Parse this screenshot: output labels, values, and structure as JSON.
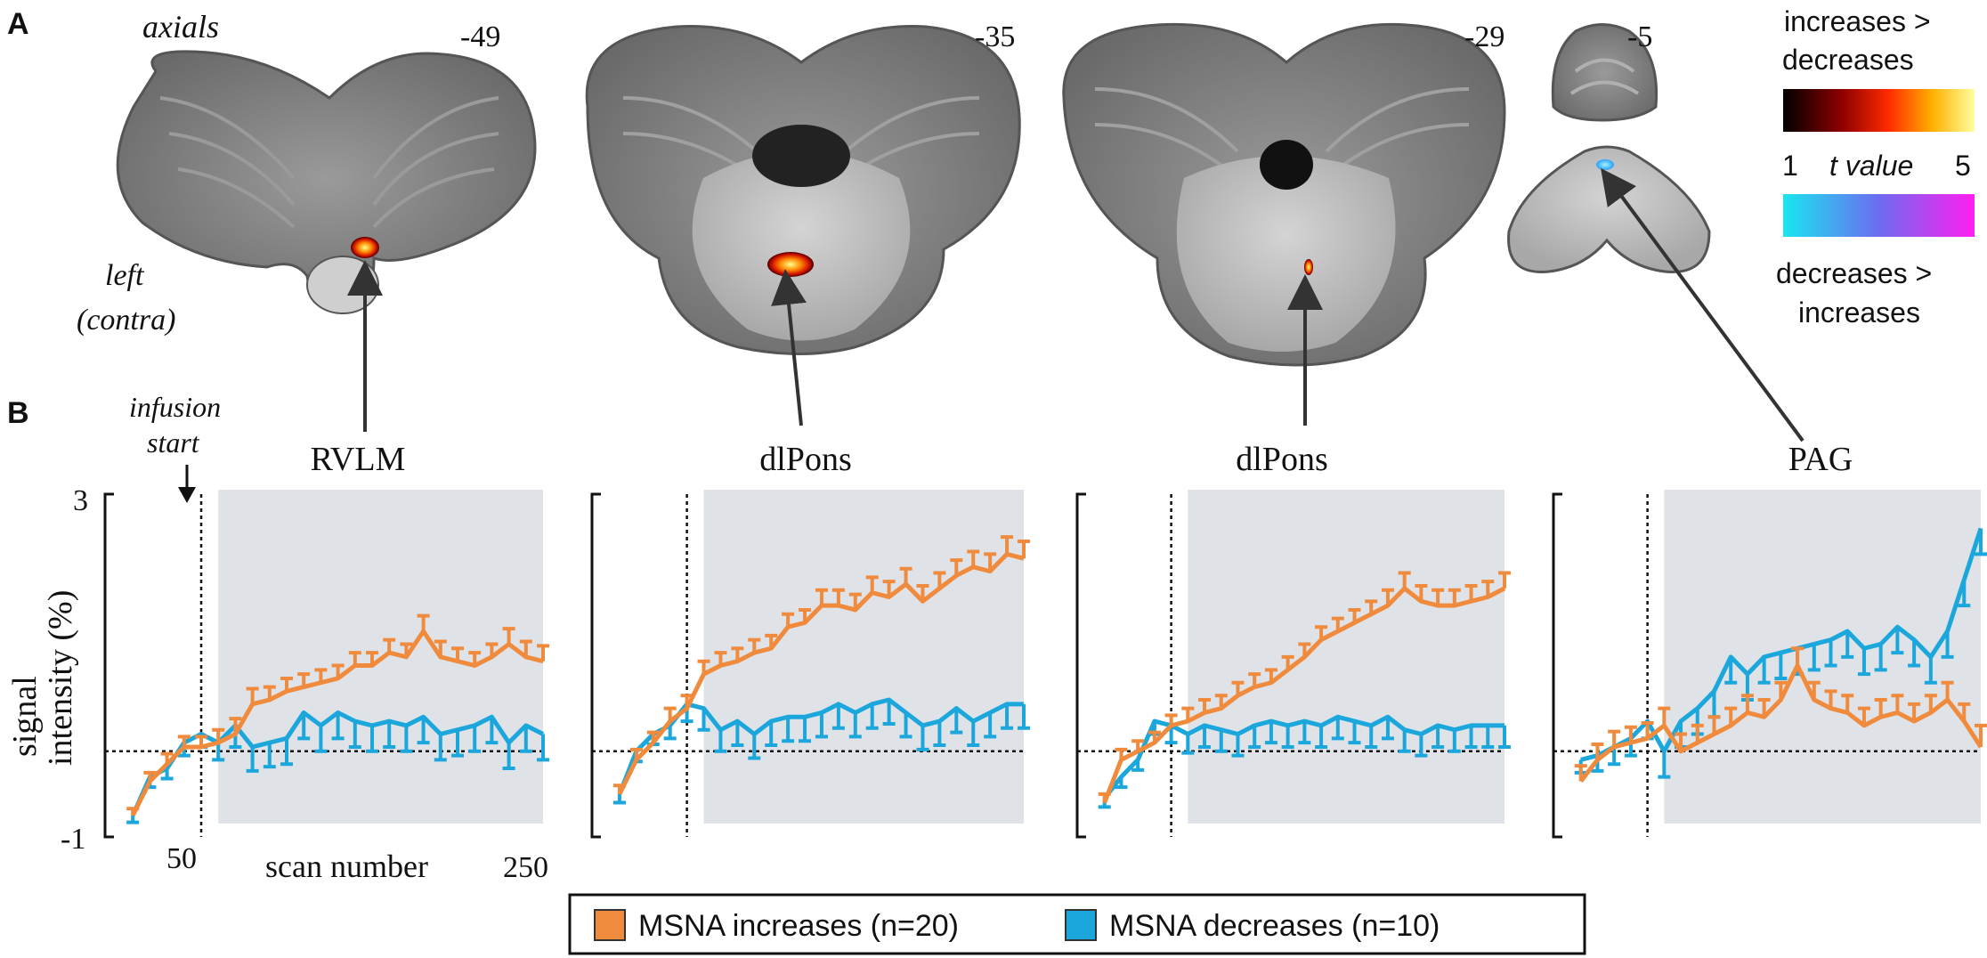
{
  "panel_a": {
    "label": "A",
    "axials_label": "axials",
    "left_label_1": "left",
    "left_label_2": "(contra)",
    "slices": [
      {
        "z": "-49"
      },
      {
        "z": "-35"
      },
      {
        "z": "-29"
      },
      {
        "z": "-5"
      }
    ],
    "colorbar": {
      "top_label_1": "increases >",
      "top_label_2": "decreases",
      "min": "1",
      "mid": "t value",
      "max": "5",
      "bottom_label_1": "decreases >",
      "bottom_label_2": "increases"
    }
  },
  "panel_b": {
    "label": "B",
    "infusion_label_1": "infusion",
    "infusion_label_2": "start",
    "ytick_top": "3",
    "ytick_bottom": "-1",
    "ylabel_1": "signal",
    "ylabel_2": "intensity (%)",
    "xtick_50": "50",
    "xtick_250": "250",
    "xlabel": "scan number"
  },
  "legend": {
    "increases": "MSNA increases (n=20)",
    "decreases": "MSNA decreases (n=10)"
  },
  "colors": {
    "increases": "#f08a3c",
    "decreases": "#1ba6dc",
    "shade": "#dfe3e8"
  },
  "chart_data": [
    {
      "type": "line",
      "title": "RVLM",
      "x": [
        10,
        20,
        30,
        40,
        50,
        60,
        70,
        80,
        90,
        100,
        110,
        120,
        130,
        140,
        150,
        160,
        170,
        180,
        190,
        200,
        210,
        220,
        230,
        240,
        250
      ],
      "xlim": [
        0,
        250
      ],
      "ylim": [
        -1,
        3
      ],
      "xlabel": "scan number",
      "ylabel": "signal intensity (%)",
      "xticks": [
        50,
        250
      ],
      "yticks": [
        -1,
        3
      ],
      "infusion_start": 50,
      "shaded_range": [
        60,
        250
      ],
      "series": [
        {
          "name": "MSNA increases (n=20)",
          "values": [
            -0.75,
            -0.35,
            -0.15,
            0.05,
            0.05,
            0.1,
            0.2,
            0.55,
            0.6,
            0.7,
            0.75,
            0.8,
            0.85,
            1.0,
            1.0,
            1.15,
            1.1,
            1.4,
            1.1,
            1.05,
            1.0,
            1.1,
            1.25,
            1.1,
            1.05
          ],
          "errors": [
            0.08,
            0.1,
            0.12,
            0.12,
            0.12,
            0.15,
            0.18,
            0.18,
            0.15,
            0.15,
            0.15,
            0.15,
            0.15,
            0.15,
            0.15,
            0.15,
            0.15,
            0.18,
            0.18,
            0.15,
            0.15,
            0.15,
            0.18,
            0.18,
            0.18
          ]
        },
        {
          "name": "MSNA decreases (n=10)",
          "values": [
            -0.75,
            -0.3,
            -0.2,
            0.1,
            0.2,
            0.1,
            0.3,
            0.05,
            0.1,
            0.15,
            0.45,
            0.3,
            0.45,
            0.35,
            0.3,
            0.35,
            0.3,
            0.4,
            0.2,
            0.25,
            0.3,
            0.4,
            0.1,
            0.3,
            0.2
          ],
          "errors": [
            0.08,
            0.12,
            0.12,
            0.15,
            0.15,
            0.2,
            0.25,
            0.28,
            0.28,
            0.3,
            0.3,
            0.3,
            0.3,
            0.3,
            0.3,
            0.3,
            0.3,
            0.3,
            0.3,
            0.3,
            0.3,
            0.3,
            0.3,
            0.3,
            0.3
          ]
        }
      ]
    },
    {
      "type": "line",
      "title": "dlPons",
      "x": [
        10,
        20,
        30,
        40,
        50,
        60,
        70,
        80,
        90,
        100,
        110,
        120,
        130,
        140,
        150,
        160,
        170,
        180,
        190,
        200,
        210,
        220,
        230,
        240,
        250
      ],
      "xlim": [
        0,
        250
      ],
      "ylim": [
        -1,
        3
      ],
      "infusion_start": 50,
      "shaded_range": [
        60,
        250
      ],
      "series": [
        {
          "name": "MSNA increases (n=20)",
          "values": [
            -0.5,
            -0.1,
            0.1,
            0.35,
            0.5,
            0.9,
            1.0,
            1.05,
            1.15,
            1.2,
            1.45,
            1.5,
            1.7,
            1.7,
            1.65,
            1.85,
            1.8,
            1.95,
            1.75,
            1.9,
            2.05,
            2.15,
            2.1,
            2.3,
            2.25
          ],
          "errors": [
            0.1,
            0.12,
            0.12,
            0.15,
            0.15,
            0.15,
            0.15,
            0.15,
            0.15,
            0.15,
            0.15,
            0.15,
            0.18,
            0.18,
            0.18,
            0.18,
            0.18,
            0.18,
            0.18,
            0.18,
            0.18,
            0.18,
            0.2,
            0.2,
            0.2
          ]
        },
        {
          "name": "MSNA decreases (n=10)",
          "values": [
            -0.5,
            0.0,
            0.2,
            0.3,
            0.55,
            0.5,
            0.25,
            0.35,
            0.2,
            0.35,
            0.4,
            0.4,
            0.45,
            0.55,
            0.45,
            0.55,
            0.6,
            0.45,
            0.3,
            0.35,
            0.5,
            0.35,
            0.45,
            0.55,
            0.55
          ],
          "errors": [
            0.1,
            0.12,
            0.12,
            0.15,
            0.2,
            0.25,
            0.25,
            0.28,
            0.28,
            0.28,
            0.28,
            0.28,
            0.28,
            0.28,
            0.28,
            0.28,
            0.28,
            0.28,
            0.28,
            0.28,
            0.28,
            0.28,
            0.28,
            0.28,
            0.28
          ]
        }
      ]
    },
    {
      "type": "line",
      "title": "dlPons",
      "x": [
        10,
        20,
        30,
        40,
        50,
        60,
        70,
        80,
        90,
        100,
        110,
        120,
        130,
        140,
        150,
        160,
        170,
        180,
        190,
        200,
        210,
        220,
        230,
        240,
        250
      ],
      "xlim": [
        0,
        250
      ],
      "ylim": [
        -1,
        3
      ],
      "infusion_start": 50,
      "shaded_range": [
        60,
        250
      ],
      "series": [
        {
          "name": "MSNA increases (n=20)",
          "values": [
            -0.6,
            -0.1,
            0.0,
            0.1,
            0.3,
            0.35,
            0.45,
            0.5,
            0.65,
            0.75,
            0.8,
            0.95,
            1.1,
            1.3,
            1.4,
            1.5,
            1.6,
            1.7,
            1.9,
            1.75,
            1.7,
            1.7,
            1.75,
            1.8,
            1.9
          ],
          "errors": [
            0.1,
            0.12,
            0.12,
            0.12,
            0.12,
            0.15,
            0.15,
            0.15,
            0.15,
            0.15,
            0.15,
            0.15,
            0.15,
            0.15,
            0.15,
            0.15,
            0.15,
            0.18,
            0.18,
            0.18,
            0.18,
            0.18,
            0.18,
            0.18,
            0.18
          ]
        },
        {
          "name": "MSNA decreases (n=10)",
          "values": [
            -0.55,
            -0.3,
            -0.1,
            0.35,
            0.3,
            0.2,
            0.3,
            0.25,
            0.2,
            0.3,
            0.35,
            0.3,
            0.35,
            0.3,
            0.4,
            0.35,
            0.3,
            0.4,
            0.25,
            0.2,
            0.3,
            0.25,
            0.3,
            0.3,
            0.3
          ],
          "errors": [
            0.1,
            0.12,
            0.12,
            0.15,
            0.2,
            0.22,
            0.25,
            0.25,
            0.25,
            0.25,
            0.25,
            0.25,
            0.25,
            0.25,
            0.25,
            0.25,
            0.25,
            0.25,
            0.25,
            0.25,
            0.25,
            0.25,
            0.25,
            0.25,
            0.25
          ]
        }
      ]
    },
    {
      "type": "line",
      "title": "PAG",
      "x": [
        10,
        20,
        30,
        40,
        50,
        60,
        70,
        80,
        90,
        100,
        110,
        120,
        130,
        140,
        150,
        160,
        170,
        180,
        190,
        200,
        210,
        220,
        230,
        240,
        250
      ],
      "xlim": [
        0,
        250
      ],
      "ylim": [
        -1,
        3
      ],
      "infusion_start": 50,
      "shaded_range": [
        60,
        250
      ],
      "series": [
        {
          "name": "MSNA increases (n=20)",
          "values": [
            -0.35,
            -0.1,
            0.05,
            0.1,
            0.15,
            0.3,
            0.0,
            0.1,
            0.2,
            0.3,
            0.45,
            0.4,
            0.6,
            1.0,
            0.6,
            0.5,
            0.45,
            0.3,
            0.4,
            0.45,
            0.35,
            0.45,
            0.6,
            0.35,
            0.05
          ],
          "errors": [
            0.18,
            0.18,
            0.18,
            0.18,
            0.18,
            0.2,
            0.2,
            0.2,
            0.2,
            0.2,
            0.2,
            0.2,
            0.2,
            0.2,
            0.2,
            0.2,
            0.2,
            0.2,
            0.2,
            0.2,
            0.2,
            0.2,
            0.2,
            0.2,
            0.25
          ]
        },
        {
          "name": "MSNA decreases (n=10)",
          "values": [
            -0.1,
            -0.05,
            0.05,
            0.15,
            0.35,
            0.0,
            0.35,
            0.5,
            0.7,
            1.1,
            0.9,
            1.1,
            1.15,
            1.2,
            1.25,
            1.3,
            1.4,
            1.2,
            1.25,
            1.45,
            1.3,
            1.1,
            1.4,
            2.0,
            2.6
          ],
          "errors": [
            0.15,
            0.18,
            0.2,
            0.2,
            0.2,
            0.3,
            0.3,
            0.3,
            0.3,
            0.3,
            0.3,
            0.3,
            0.3,
            0.3,
            0.3,
            0.3,
            0.3,
            0.3,
            0.3,
            0.3,
            0.3,
            0.3,
            0.3,
            0.3,
            0.3
          ]
        }
      ]
    }
  ]
}
